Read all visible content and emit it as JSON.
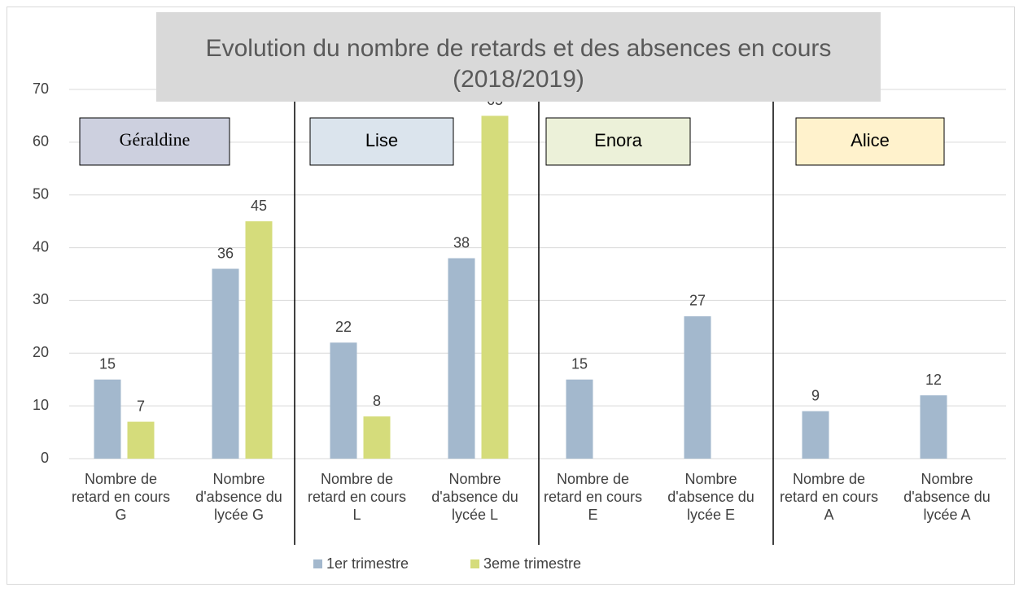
{
  "chart_data": {
    "type": "bar",
    "title": "Evolution du nombre de retards et des absences en cours (2018/2019)",
    "categories": [
      "Nombre de retard en cours G",
      "Nombre d'absence du lycée G",
      "Nombre de retard en cours L",
      "Nombre d'absence du lycée L",
      "Nombre de retard en cours E",
      "Nombre d'absence du lycée E",
      "Nombre de retard en cours A",
      "Nombre d'absence du lycée A"
    ],
    "series": [
      {
        "name": "1er trimestre",
        "color": "#a3b8cd",
        "values": [
          15,
          36,
          22,
          38,
          15,
          27,
          9,
          12
        ]
      },
      {
        "name": "3eme trimestre",
        "color": "#d5dc7b",
        "values": [
          7,
          45,
          8,
          65,
          null,
          null,
          null,
          null
        ]
      }
    ],
    "ylim": [
      0,
      70
    ],
    "yticks": [
      0,
      10,
      20,
      30,
      40,
      50,
      60,
      70
    ],
    "grid": true,
    "legend": "bottom",
    "annotations": [
      {
        "text": "Géraldine",
        "color": "#cdd0df"
      },
      {
        "text": "Lise",
        "color": "#dbe4ed"
      },
      {
        "text": "Enora",
        "color": "#ecf1d9"
      },
      {
        "text": "Alice",
        "color": "#fff2cc"
      }
    ]
  }
}
